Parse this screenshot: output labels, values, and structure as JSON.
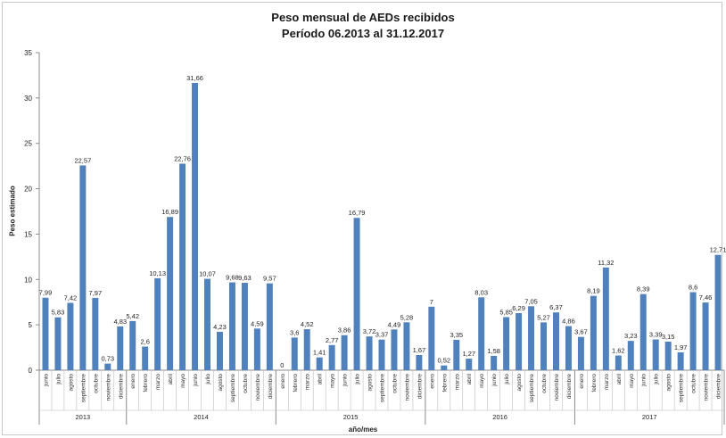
{
  "chart_data": {
    "type": "bar",
    "title": "Peso mensual de AEDs recibidos",
    "subtitle": "Período 06.2013 al 31.12.2017",
    "xlabel": "año/mes",
    "ylabel": "Peso estimado",
    "ylim": [
      0,
      35
    ],
    "yticks": [
      0,
      5,
      10,
      15,
      20,
      25,
      30,
      35
    ],
    "grid": false,
    "bar_color": "#4f81bd",
    "groups": [
      {
        "label": "2013",
        "categories": [
          "junio",
          "julio",
          "agosto",
          "septiembre",
          "octubre",
          "noviembre",
          "diciembre"
        ],
        "values": [
          7.99,
          5.83,
          7.42,
          22.57,
          7.97,
          0.73,
          4.83
        ],
        "labels": [
          "7,99",
          "5,83",
          "7,42",
          "22,57",
          "7,97",
          "0,73",
          "4,83"
        ]
      },
      {
        "label": "2014",
        "categories": [
          "enero",
          "febrero",
          "marzo",
          "abril",
          "mayo",
          "junio",
          "julio",
          "agosto",
          "septiembre",
          "octubre",
          "noviembre",
          "diciembre"
        ],
        "values": [
          5.42,
          2.6,
          10.13,
          16.89,
          22.76,
          31.66,
          10.07,
          4.23,
          9.68,
          9.63,
          4.59,
          9.57
        ],
        "labels": [
          "5,42",
          "2,6",
          "10,13",
          "16,89",
          "22,76",
          "31,66",
          "10,07",
          "4,23",
          "9,68",
          "9,63",
          "4,59",
          "9,57"
        ]
      },
      {
        "label": "2015",
        "categories": [
          "enero",
          "febrero",
          "marzo",
          "abril",
          "mayo",
          "junio",
          "julio",
          "agosto",
          "septiembre",
          "octubre",
          "noviembre",
          "diciembre"
        ],
        "values": [
          0,
          3.6,
          4.52,
          1.41,
          2.77,
          3.86,
          16.79,
          3.72,
          3.37,
          4.49,
          5.28,
          1.67
        ],
        "labels": [
          "0",
          "3,6",
          "4,52",
          "1,41",
          "2,77",
          "3,86",
          "16,79",
          "3,72",
          "3,37",
          "4,49",
          "5,28",
          "1,67"
        ]
      },
      {
        "label": "2016",
        "categories": [
          "enero",
          "febrero",
          "marzo",
          "abril",
          "mayo",
          "junio",
          "julio",
          "agosto",
          "septiembre",
          "octubre",
          "noviembre",
          "diciembre"
        ],
        "values": [
          7,
          0.52,
          3.35,
          1.27,
          8.03,
          1.58,
          5.85,
          6.29,
          7.05,
          5.27,
          6.37,
          4.86
        ],
        "labels": [
          "7",
          "0,52",
          "3,35",
          "1,27",
          "8,03",
          "1,58",
          "5,85",
          "6,29",
          "7,05",
          "5,27",
          "6,37",
          "4,86"
        ]
      },
      {
        "label": "2017",
        "categories": [
          "enero",
          "febrero",
          "marzo",
          "abril",
          "mayo",
          "junio",
          "julio",
          "agosto",
          "septiembre",
          "octubre",
          "noviembre",
          "diciembre"
        ],
        "values": [
          3.67,
          8.19,
          11.32,
          1.62,
          3.23,
          8.39,
          3.39,
          3.15,
          1.97,
          8.6,
          7.46,
          12.71
        ],
        "labels": [
          "3,67",
          "8,19",
          "11,32",
          "1,62",
          "3,23",
          "8,39",
          "3,39",
          "3,15",
          "1,97",
          "8,6",
          "7,46",
          "12,71"
        ]
      }
    ]
  }
}
